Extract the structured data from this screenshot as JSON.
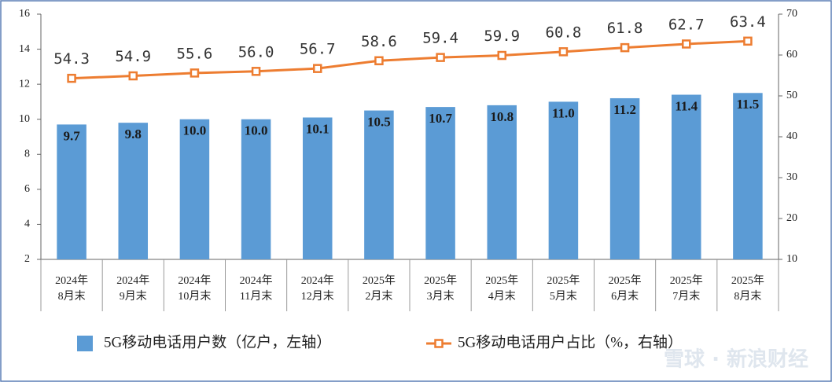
{
  "chart_data": {
    "type": "combo",
    "categories": [
      [
        "2024年",
        "8月末"
      ],
      [
        "2024年",
        "9月末"
      ],
      [
        "2024年",
        "10月末"
      ],
      [
        "2024年",
        "11月末"
      ],
      [
        "2024年",
        "12月末"
      ],
      [
        "2025年",
        "2月末"
      ],
      [
        "2025年",
        "3月末"
      ],
      [
        "2025年",
        "4月末"
      ],
      [
        "2025年",
        "5月末"
      ],
      [
        "2025年",
        "6月末"
      ],
      [
        "2025年",
        "7月末"
      ],
      [
        "2025年",
        "8月末"
      ]
    ],
    "series": [
      {
        "name": "5G移动电话用户数（亿户，左轴）",
        "type": "bar",
        "color": "#5b9bd5",
        "values": [
          9.7,
          9.8,
          10.0,
          10.0,
          10.1,
          10.5,
          10.7,
          10.8,
          11.0,
          11.2,
          11.4,
          11.5
        ],
        "value_labels": [
          "9.7",
          "9.8",
          "10.0",
          "10.0",
          "10.1",
          "10.5",
          "10.7",
          "10.8",
          "11.0",
          "11.2",
          "11.4",
          "11.5"
        ]
      },
      {
        "name": "5G移动电话用户占比（%，右轴）",
        "type": "line",
        "axis": "y2",
        "color": "#ed7d31",
        "values": [
          54.3,
          54.9,
          55.6,
          56.0,
          56.7,
          58.6,
          59.4,
          59.9,
          60.8,
          61.8,
          62.7,
          63.4
        ],
        "value_labels": [
          "54.3",
          "54.9",
          "55.6",
          "56.0",
          "56.7",
          "58.6",
          "59.4",
          "59.9",
          "60.8",
          "61.8",
          "62.7",
          "63.4"
        ]
      }
    ],
    "ylim": [
      2,
      16
    ],
    "yticks": [
      2,
      4,
      6,
      8,
      10,
      12,
      14,
      16
    ],
    "y2lim": [
      10,
      70
    ],
    "y2ticks": [
      10,
      20,
      30,
      40,
      50,
      60,
      70
    ],
    "legend": "bottom",
    "watermark": "雪球 · 新浪财经"
  }
}
